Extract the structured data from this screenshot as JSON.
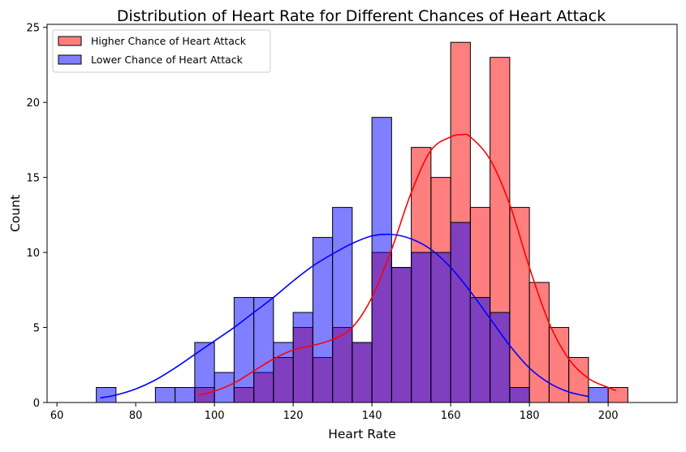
{
  "chart_data": {
    "type": "histogram",
    "title": "Distribution of Heart Rate for Different Chances of Heart Attack",
    "xlabel": "Heart Rate",
    "ylabel": "Count",
    "xlim": [
      57.5,
      217.5
    ],
    "ylim": [
      0,
      25.2
    ],
    "xticks": [
      60,
      80,
      100,
      120,
      140,
      160,
      180,
      200
    ],
    "yticks": [
      0,
      5,
      10,
      15,
      20,
      25
    ],
    "bin_edges": [
      65,
      70,
      75,
      80,
      85,
      90,
      95,
      100,
      105,
      110,
      115,
      120,
      125,
      130,
      135,
      140,
      145,
      150,
      155,
      160,
      165,
      170,
      175,
      180,
      185,
      190,
      195,
      200,
      205,
      210
    ],
    "grid": false,
    "legend_position": "top-left",
    "series": [
      {
        "name": "Higher Chance of Heart Attack",
        "color": "#ff0000",
        "counts": [
          0,
          0,
          0,
          0,
          0,
          0,
          1,
          0,
          1,
          2,
          3,
          5,
          3,
          5,
          4,
          10,
          9,
          17,
          15,
          24,
          13,
          23,
          13,
          8,
          5,
          3,
          0,
          1,
          0
        ],
        "kde": {
          "x": [
            96,
            100,
            105,
            110,
            115,
            120,
            125,
            130,
            135,
            140,
            145,
            150,
            155,
            160,
            163,
            165,
            170,
            175,
            180,
            185,
            190,
            195,
            200,
            202
          ],
          "y": [
            0.5,
            0.75,
            1.3,
            2.1,
            2.9,
            3.5,
            3.8,
            4.2,
            5.0,
            7.0,
            10.2,
            14.0,
            16.8,
            17.7,
            17.85,
            17.7,
            16.2,
            13.2,
            9.0,
            5.3,
            2.9,
            1.6,
            1.0,
            0.8
          ]
        }
      },
      {
        "name": "Lower Chance of Heart Attack",
        "color": "#0000ff",
        "counts": [
          0,
          1,
          0,
          0,
          1,
          1,
          4,
          2,
          7,
          7,
          4,
          6,
          11,
          13,
          4,
          19,
          9,
          10,
          10,
          12,
          7,
          6,
          1,
          0,
          0,
          0,
          1,
          0,
          0
        ],
        "kde": {
          "x": [
            71,
            75,
            80,
            85,
            90,
            95,
            100,
            105,
            110,
            115,
            120,
            125,
            130,
            135,
            140,
            145,
            150,
            155,
            160,
            165,
            170,
            175,
            180,
            185,
            190,
            195
          ],
          "y": [
            0.3,
            0.5,
            0.9,
            1.5,
            2.3,
            3.2,
            4.1,
            5.0,
            6.0,
            7.0,
            8.1,
            9.1,
            9.9,
            10.6,
            11.1,
            11.2,
            10.9,
            10.2,
            9.0,
            7.4,
            5.6,
            3.8,
            2.3,
            1.3,
            0.7,
            0.4
          ]
        }
      }
    ]
  }
}
